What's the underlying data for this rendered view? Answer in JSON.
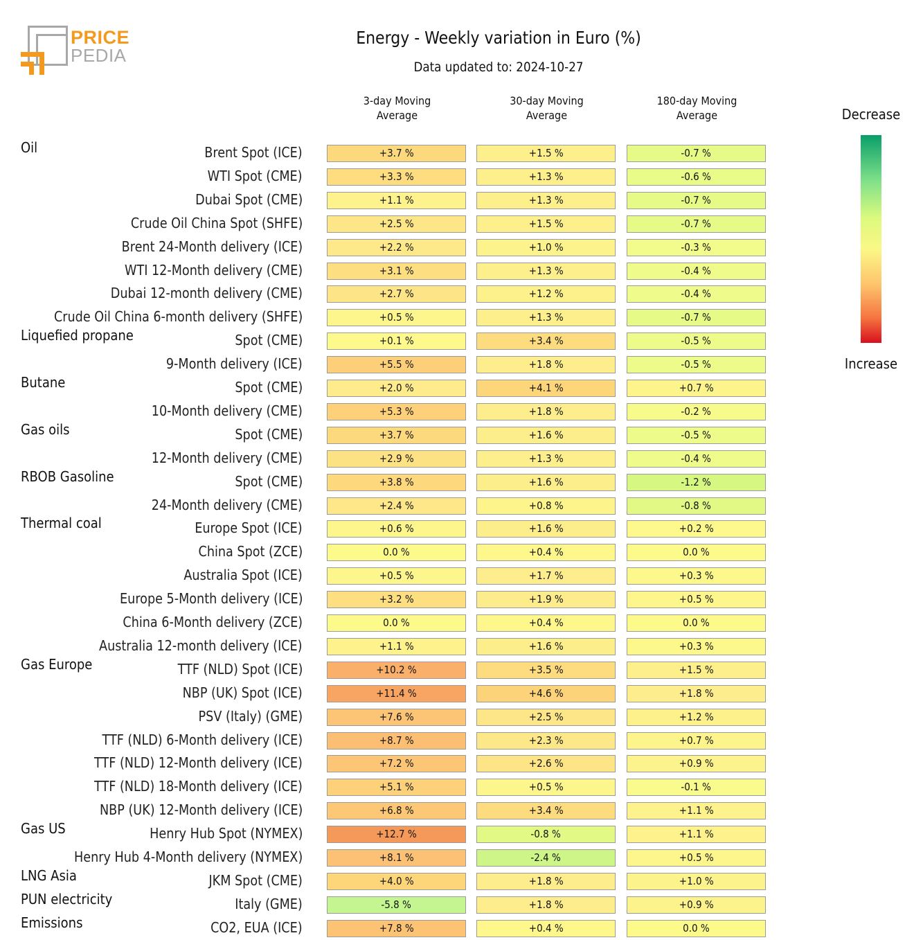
{
  "logo": {
    "line1": "PRICE",
    "line2": "PEDIA"
  },
  "chart_data": {
    "type": "table",
    "title": "Energy - Weekly variation in Euro (%)",
    "subtitle": "Data updated to: 2024-10-27",
    "columns": [
      "3-day Moving Average",
      "30-day Moving Average",
      "180-day Moving Average"
    ],
    "columns_lines": [
      [
        "3-day Moving",
        "Average"
      ],
      [
        "30-day Moving",
        "Average"
      ],
      [
        "180-day Moving",
        "Average"
      ]
    ],
    "legend": {
      "top": "Decrease",
      "bottom": "Increase"
    },
    "rows": [
      {
        "group": "Oil",
        "label": "Brent Spot (ICE)",
        "values": [
          3.7,
          1.5,
          -0.7
        ]
      },
      {
        "group": "",
        "label": "WTI Spot (CME)",
        "values": [
          3.3,
          1.3,
          -0.6
        ]
      },
      {
        "group": "",
        "label": "Dubai Spot (CME)",
        "values": [
          1.1,
          1.3,
          -0.7
        ]
      },
      {
        "group": "",
        "label": "Crude Oil China Spot (SHFE)",
        "values": [
          2.5,
          1.5,
          -0.7
        ]
      },
      {
        "group": "",
        "label": "Brent 24-Month delivery (ICE)",
        "values": [
          2.2,
          1.0,
          -0.3
        ]
      },
      {
        "group": "",
        "label": "WTI 12-Month delivery (CME)",
        "values": [
          3.1,
          1.3,
          -0.4
        ]
      },
      {
        "group": "",
        "label": "Dubai 12-month delivery (CME)",
        "values": [
          2.7,
          1.2,
          -0.4
        ]
      },
      {
        "group": "",
        "label": "Crude Oil China 6-month delivery (SHFE)",
        "values": [
          0.5,
          1.3,
          -0.7
        ]
      },
      {
        "group": "Liquefied propane",
        "label": "Spot (CME)",
        "values": [
          0.1,
          3.4,
          -0.5
        ]
      },
      {
        "group": "",
        "label": "9-Month delivery (ICE)",
        "values": [
          5.5,
          1.8,
          -0.5
        ]
      },
      {
        "group": "Butane",
        "label": "Spot (CME)",
        "values": [
          2.0,
          4.1,
          0.7
        ]
      },
      {
        "group": "",
        "label": "10-Month delivery (CME)",
        "values": [
          5.3,
          1.8,
          -0.2
        ]
      },
      {
        "group": "Gas oils",
        "label": "Spot (CME)",
        "values": [
          3.7,
          1.6,
          -0.5
        ]
      },
      {
        "group": "",
        "label": "12-Month delivery (CME)",
        "values": [
          2.9,
          1.3,
          -0.4
        ]
      },
      {
        "group": "RBOB Gasoline",
        "label": "Spot (CME)",
        "values": [
          3.8,
          1.6,
          -1.2
        ]
      },
      {
        "group": "",
        "label": "24-Month delivery (CME)",
        "values": [
          2.4,
          0.8,
          -0.8
        ]
      },
      {
        "group": "Thermal coal",
        "label": "Europe Spot (ICE)",
        "values": [
          0.6,
          1.6,
          0.2
        ]
      },
      {
        "group": "",
        "label": "China Spot (ZCE)",
        "values": [
          0.0,
          0.4,
          0.0
        ]
      },
      {
        "group": "",
        "label": "Australia Spot (ICE)",
        "values": [
          0.5,
          1.7,
          0.3
        ]
      },
      {
        "group": "",
        "label": "Europe 5-Month delivery (ICE)",
        "values": [
          3.2,
          1.9,
          0.5
        ]
      },
      {
        "group": "",
        "label": "China 6-Month delivery (ZCE)",
        "values": [
          0.0,
          0.4,
          0.0
        ]
      },
      {
        "group": "",
        "label": "Australia 12-month delivery (ICE)",
        "values": [
          1.1,
          1.6,
          0.3
        ]
      },
      {
        "group": "Gas Europe",
        "label": "TTF (NLD) Spot (ICE)",
        "values": [
          10.2,
          3.5,
          1.5
        ]
      },
      {
        "group": "",
        "label": "NBP (UK) Spot (ICE)",
        "values": [
          11.4,
          4.6,
          1.8
        ]
      },
      {
        "group": "",
        "label": "PSV (Italy) (GME)",
        "values": [
          7.6,
          2.5,
          1.2
        ]
      },
      {
        "group": "",
        "label": "TTF (NLD) 6-Month delivery (ICE)",
        "values": [
          8.7,
          2.3,
          0.7
        ]
      },
      {
        "group": "",
        "label": "TTF (NLD) 12-Month delivery (ICE)",
        "values": [
          7.2,
          2.6,
          0.9
        ]
      },
      {
        "group": "",
        "label": "TTF (NLD) 18-Month delivery (ICE)",
        "values": [
          5.1,
          0.5,
          -0.1
        ]
      },
      {
        "group": "",
        "label": "NBP (UK) 12-Month delivery (ICE)",
        "values": [
          6.8,
          3.4,
          1.1
        ]
      },
      {
        "group": "Gas US",
        "label": "Henry Hub Spot (NYMEX)",
        "values": [
          12.7,
          -0.8,
          1.1
        ]
      },
      {
        "group": "",
        "label": "Henry Hub 4-Month delivery (NYMEX)",
        "values": [
          8.1,
          -2.4,
          0.5
        ]
      },
      {
        "group": "LNG Asia",
        "label": "JKM Spot (CME)",
        "values": [
          4.0,
          1.8,
          1.0
        ]
      },
      {
        "group": "PUN electricity",
        "label": "Italy (GME)",
        "values": [
          -5.8,
          1.8,
          0.9
        ]
      },
      {
        "group": "Emissions",
        "label": "CO2, EUA (ICE)",
        "values": [
          7.8,
          0.4,
          0.0
        ]
      }
    ]
  }
}
